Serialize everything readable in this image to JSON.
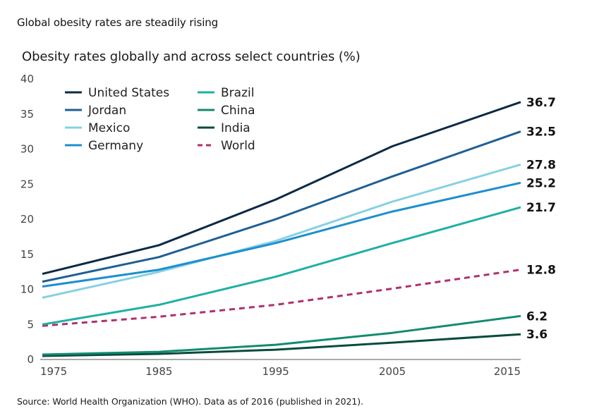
{
  "header": {
    "title": "Global obesity rates are steadily rising",
    "subtitle": "Obesity rates globally and across select countries (%)"
  },
  "footer": {
    "source": "Source: World Health Organization (WHO). Data as of 2016 (published in 2021)."
  },
  "chart_data": {
    "type": "line",
    "title": "Obesity rates globally and across select countries (%)",
    "xlabel": "",
    "ylabel": "",
    "x": [
      1975,
      1985,
      1995,
      2005,
      2016
    ],
    "x_ticks": [
      "1975",
      "1985",
      "1995",
      "2005",
      "2015"
    ],
    "y_ticks": [
      "0",
      "5",
      "10",
      "15",
      "20",
      "25",
      "30",
      "35",
      "40"
    ],
    "ylim": [
      0,
      40
    ],
    "grid": false,
    "legend_position": "top-left",
    "series": [
      {
        "name": "United States",
        "color": "#0b2a45",
        "dashed": false,
        "values": [
          12.2,
          16.3,
          22.8,
          30.4,
          36.7
        ],
        "end_label": "36.7"
      },
      {
        "name": "Jordan",
        "color": "#1e5f96",
        "dashed": false,
        "values": [
          11.1,
          14.6,
          20.0,
          26.1,
          32.5
        ],
        "end_label": "32.5"
      },
      {
        "name": "Mexico",
        "color": "#86d1e3",
        "dashed": false,
        "values": [
          8.8,
          12.5,
          16.9,
          22.5,
          27.8
        ],
        "end_label": "27.8"
      },
      {
        "name": "Germany",
        "color": "#1c8fcf",
        "dashed": false,
        "values": [
          10.4,
          12.8,
          16.6,
          21.1,
          25.2
        ],
        "end_label": "25.2"
      },
      {
        "name": "Brazil",
        "color": "#1fb0a5",
        "dashed": false,
        "values": [
          5.0,
          7.8,
          11.8,
          16.6,
          21.7
        ],
        "end_label": "21.7"
      },
      {
        "name": "China",
        "color": "#138a70",
        "dashed": false,
        "values": [
          0.7,
          1.1,
          2.1,
          3.8,
          6.2
        ],
        "end_label": "6.2"
      },
      {
        "name": "India",
        "color": "#0a4a3d",
        "dashed": false,
        "values": [
          0.5,
          0.8,
          1.4,
          2.4,
          3.6
        ],
        "end_label": "3.6"
      },
      {
        "name": "World",
        "color": "#b0306e",
        "dashed": true,
        "values": [
          4.8,
          6.1,
          7.8,
          10.1,
          12.8
        ],
        "end_label": "12.8"
      }
    ]
  }
}
